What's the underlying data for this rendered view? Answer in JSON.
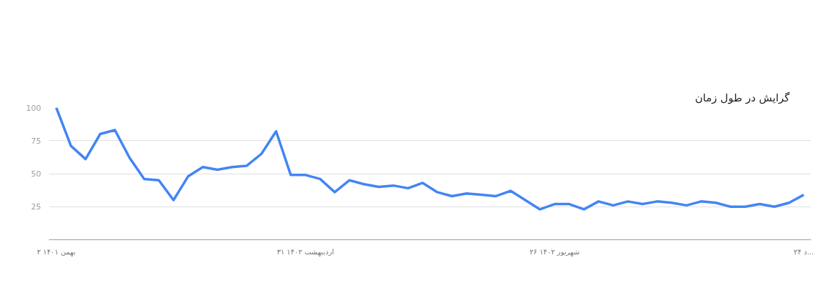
{
  "chart_data": {
    "type": "line",
    "title": "گرایش در طول زمان",
    "categories": [
      "۲ بهمن ۱۴۰۱",
      null,
      null,
      null,
      null,
      null,
      null,
      null,
      null,
      null,
      null,
      null,
      null,
      null,
      null,
      null,
      null,
      "۳۱ اردیبهشت ۱۴۰۲",
      null,
      null,
      null,
      null,
      null,
      null,
      null,
      null,
      null,
      null,
      null,
      null,
      null,
      null,
      null,
      null,
      "۲۶ شهریور ۱۴۰۲",
      null,
      null,
      null,
      null,
      null,
      null,
      null,
      null,
      null,
      null,
      null,
      null,
      null,
      null,
      null,
      null,
      "۲۴ د..."
    ],
    "series": [
      {
        "color": "#4285f4",
        "values": [
          100,
          71,
          61,
          80,
          83,
          62,
          46,
          45,
          30,
          48,
          55,
          53,
          55,
          56,
          65,
          82,
          49,
          49,
          46,
          36,
          45,
          42,
          40,
          41,
          39,
          43,
          36,
          33,
          35,
          34,
          33,
          37,
          30,
          23,
          27,
          27,
          23,
          29,
          26,
          29,
          27,
          29,
          28,
          26,
          29,
          28,
          25,
          25,
          27,
          25,
          28,
          34
        ]
      }
    ],
    "ylim": [
      0,
      100
    ],
    "yticks": [
      25,
      50,
      75,
      100
    ],
    "grid": "y"
  }
}
